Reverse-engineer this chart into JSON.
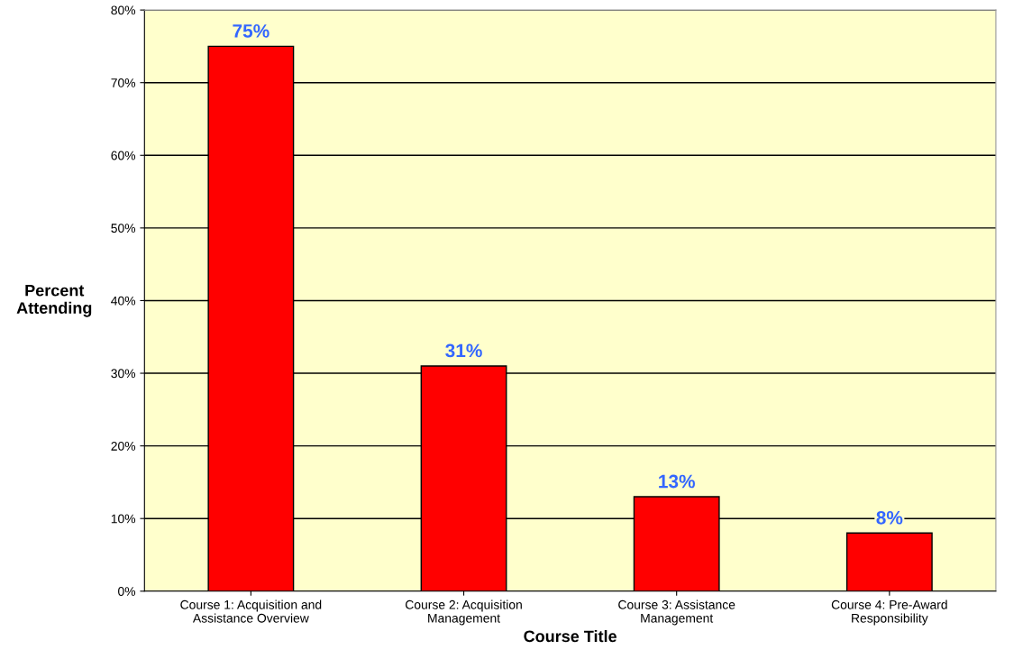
{
  "chart_data": {
    "type": "bar",
    "xlabel": "Course Title",
    "ylabel": "Percent\nAttending",
    "categories": [
      "Course 1: Acquisition and\nAssistance Overview",
      "Course 2: Acquisition\nManagement",
      "Course 3: Assistance\nManagement",
      "Course 4: Pre-Award\nResponsibility"
    ],
    "values": [
      75,
      31,
      13,
      8
    ],
    "color": "#ff0000",
    "value_labels": [
      "75%",
      "31%",
      "13%",
      "8%"
    ],
    "ylim": [
      0,
      80
    ],
    "yticks": [
      {
        "value": 0,
        "label": "0%"
      },
      {
        "value": 10,
        "label": "10%"
      },
      {
        "value": 20,
        "label": "20%"
      },
      {
        "value": 30,
        "label": "30%"
      },
      {
        "value": 40,
        "label": "40%"
      },
      {
        "value": 50,
        "label": "50%"
      },
      {
        "value": 60,
        "label": "60%"
      },
      {
        "value": 70,
        "label": "70%"
      },
      {
        "value": 80,
        "label": "80%"
      }
    ],
    "grid": "y"
  }
}
